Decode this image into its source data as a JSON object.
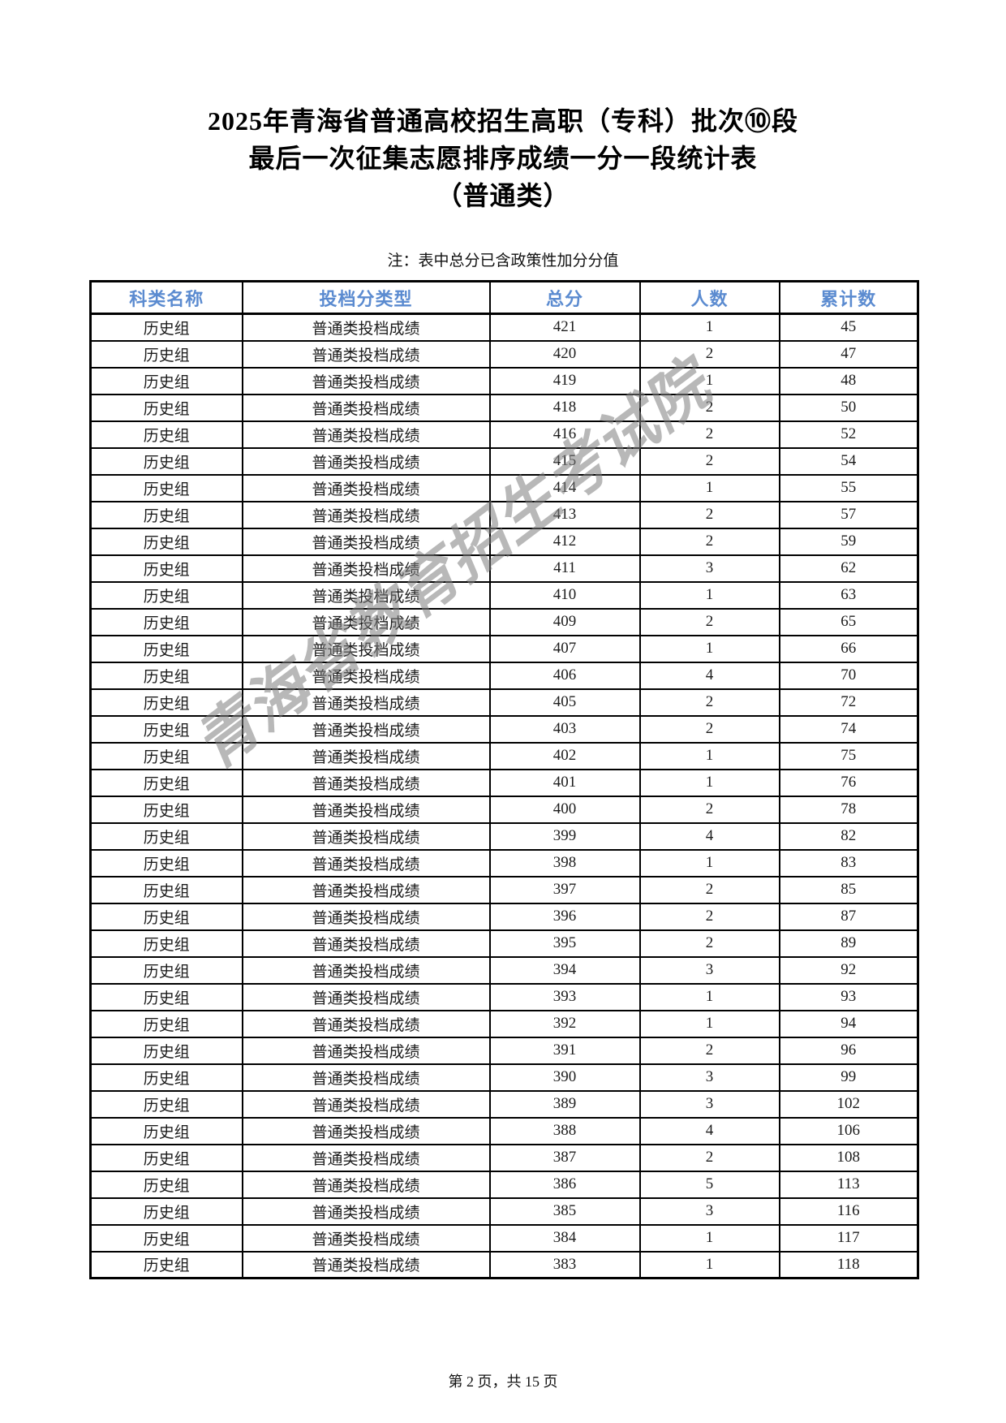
{
  "page": {
    "title_lines": [
      "2025年青海省普通高校招生高职（专科）批次⑩段",
      "最后一次征集志愿排序成绩一分一段统计表",
      "（普通类）"
    ],
    "note": "注：表中总分已含政策性加分分值",
    "watermark": "青海省教育招生考试院",
    "footer": "第 2 页，共 15 页"
  },
  "colors": {
    "header_text": "#5b8bd0",
    "body_text": "#1c1c1c",
    "border": "#000000",
    "watermark_gray": "#7d7d7d"
  },
  "table": {
    "columns": [
      "科类名称",
      "投档分类型",
      "总分",
      "人数",
      "累计数"
    ],
    "rows": [
      [
        "历史组",
        "普通类投档成绩",
        "421",
        "1",
        "45"
      ],
      [
        "历史组",
        "普通类投档成绩",
        "420",
        "2",
        "47"
      ],
      [
        "历史组",
        "普通类投档成绩",
        "419",
        "1",
        "48"
      ],
      [
        "历史组",
        "普通类投档成绩",
        "418",
        "2",
        "50"
      ],
      [
        "历史组",
        "普通类投档成绩",
        "416",
        "2",
        "52"
      ],
      [
        "历史组",
        "普通类投档成绩",
        "415",
        "2",
        "54"
      ],
      [
        "历史组",
        "普通类投档成绩",
        "414",
        "1",
        "55"
      ],
      [
        "历史组",
        "普通类投档成绩",
        "413",
        "2",
        "57"
      ],
      [
        "历史组",
        "普通类投档成绩",
        "412",
        "2",
        "59"
      ],
      [
        "历史组",
        "普通类投档成绩",
        "411",
        "3",
        "62"
      ],
      [
        "历史组",
        "普通类投档成绩",
        "410",
        "1",
        "63"
      ],
      [
        "历史组",
        "普通类投档成绩",
        "409",
        "2",
        "65"
      ],
      [
        "历史组",
        "普通类投档成绩",
        "407",
        "1",
        "66"
      ],
      [
        "历史组",
        "普通类投档成绩",
        "406",
        "4",
        "70"
      ],
      [
        "历史组",
        "普通类投档成绩",
        "405",
        "2",
        "72"
      ],
      [
        "历史组",
        "普通类投档成绩",
        "403",
        "2",
        "74"
      ],
      [
        "历史组",
        "普通类投档成绩",
        "402",
        "1",
        "75"
      ],
      [
        "历史组",
        "普通类投档成绩",
        "401",
        "1",
        "76"
      ],
      [
        "历史组",
        "普通类投档成绩",
        "400",
        "2",
        "78"
      ],
      [
        "历史组",
        "普通类投档成绩",
        "399",
        "4",
        "82"
      ],
      [
        "历史组",
        "普通类投档成绩",
        "398",
        "1",
        "83"
      ],
      [
        "历史组",
        "普通类投档成绩",
        "397",
        "2",
        "85"
      ],
      [
        "历史组",
        "普通类投档成绩",
        "396",
        "2",
        "87"
      ],
      [
        "历史组",
        "普通类投档成绩",
        "395",
        "2",
        "89"
      ],
      [
        "历史组",
        "普通类投档成绩",
        "394",
        "3",
        "92"
      ],
      [
        "历史组",
        "普通类投档成绩",
        "393",
        "1",
        "93"
      ],
      [
        "历史组",
        "普通类投档成绩",
        "392",
        "1",
        "94"
      ],
      [
        "历史组",
        "普通类投档成绩",
        "391",
        "2",
        "96"
      ],
      [
        "历史组",
        "普通类投档成绩",
        "390",
        "3",
        "99"
      ],
      [
        "历史组",
        "普通类投档成绩",
        "389",
        "3",
        "102"
      ],
      [
        "历史组",
        "普通类投档成绩",
        "388",
        "4",
        "106"
      ],
      [
        "历史组",
        "普通类投档成绩",
        "387",
        "2",
        "108"
      ],
      [
        "历史组",
        "普通类投档成绩",
        "386",
        "5",
        "113"
      ],
      [
        "历史组",
        "普通类投档成绩",
        "385",
        "3",
        "116"
      ],
      [
        "历史组",
        "普通类投档成绩",
        "384",
        "1",
        "117"
      ],
      [
        "历史组",
        "普通类投档成绩",
        "383",
        "1",
        "118"
      ]
    ]
  }
}
